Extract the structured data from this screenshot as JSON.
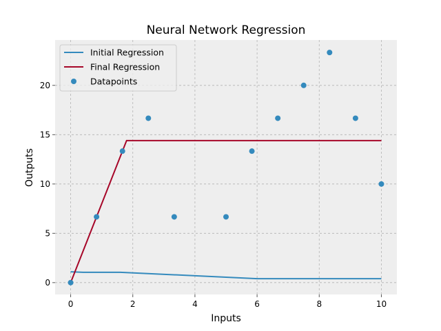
{
  "chart_data": {
    "type": "line",
    "title": "Neural Network Regression",
    "xlabel": "Inputs",
    "ylabel": "Outputs",
    "xlim": [
      -0.5,
      10.5
    ],
    "ylim": [
      -1.2,
      24.6
    ],
    "xticks": [
      0,
      2,
      4,
      6,
      8,
      10
    ],
    "yticks": [
      0,
      5,
      10,
      15,
      20
    ],
    "grid": true,
    "legend_position": "top-left",
    "series": [
      {
        "name": "Initial Regression",
        "kind": "line",
        "color": "#348ABD",
        "x": [
          0,
          0.4,
          1.6,
          6,
          10
        ],
        "y": [
          1.1,
          1.05,
          1.05,
          0.4,
          0.4
        ]
      },
      {
        "name": "Final Regression",
        "kind": "line",
        "color": "#A60628",
        "x": [
          0,
          1.8,
          10
        ],
        "y": [
          0,
          14.4,
          14.4
        ]
      },
      {
        "name": "Datapoints",
        "kind": "scatter",
        "color": "#348ABD",
        "x": [
          0,
          0.833,
          1.667,
          2.5,
          3.333,
          5.0,
          5.833,
          6.667,
          7.5,
          8.333,
          9.167,
          10
        ],
        "y": [
          0,
          6.667,
          13.333,
          16.667,
          6.667,
          6.667,
          13.333,
          16.667,
          20,
          23.333,
          16.667,
          10
        ]
      }
    ]
  }
}
